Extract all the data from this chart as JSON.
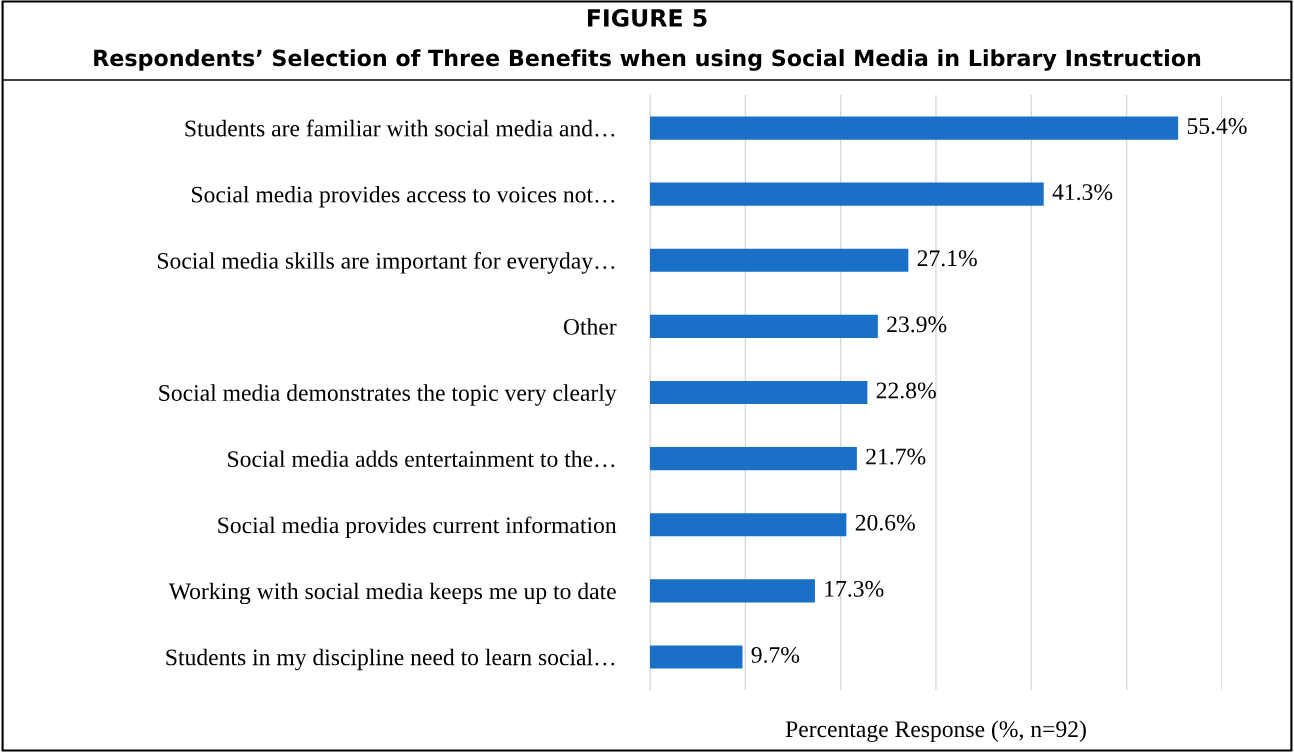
{
  "chart_data": {
    "type": "bar",
    "orientation": "horizontal",
    "title": "FIGURE 5",
    "subtitle": "Respondents’ Selection of Three Benefits when using Social Media in Library Instruction",
    "xlabel": "Percentage Response (%, n=92)",
    "categories": [
      "Students are familiar with social media and…",
      "Social media provides access to voices not…",
      "Social media skills are important for everyday…",
      "Other",
      "Social media demonstrates the topic very clearly",
      "Social media adds entertainment to the…",
      "Social media provides current information",
      "Working with social media keeps me up to date",
      "Students in my discipline need to learn social…"
    ],
    "values": [
      55.4,
      41.3,
      27.1,
      23.9,
      22.8,
      21.7,
      20.6,
      17.3,
      9.7
    ],
    "value_labels": [
      "55.4%",
      "41.3%",
      "27.1%",
      "23.9%",
      "22.8%",
      "21.7%",
      "20.6%",
      "17.3%",
      "9.7%"
    ],
    "color": "#1a70c6",
    "xlim": [
      0,
      60
    ],
    "xticks": [
      {
        "value": 0,
        "label": null
      },
      {
        "value": 10,
        "label": null
      },
      {
        "value": 20,
        "label": null
      },
      {
        "value": 30,
        "label": null
      },
      {
        "value": 40,
        "label": null
      },
      {
        "value": 50,
        "label": null
      },
      {
        "value": 60,
        "label": null
      }
    ],
    "tick_labels": "y",
    "grid": "x"
  }
}
